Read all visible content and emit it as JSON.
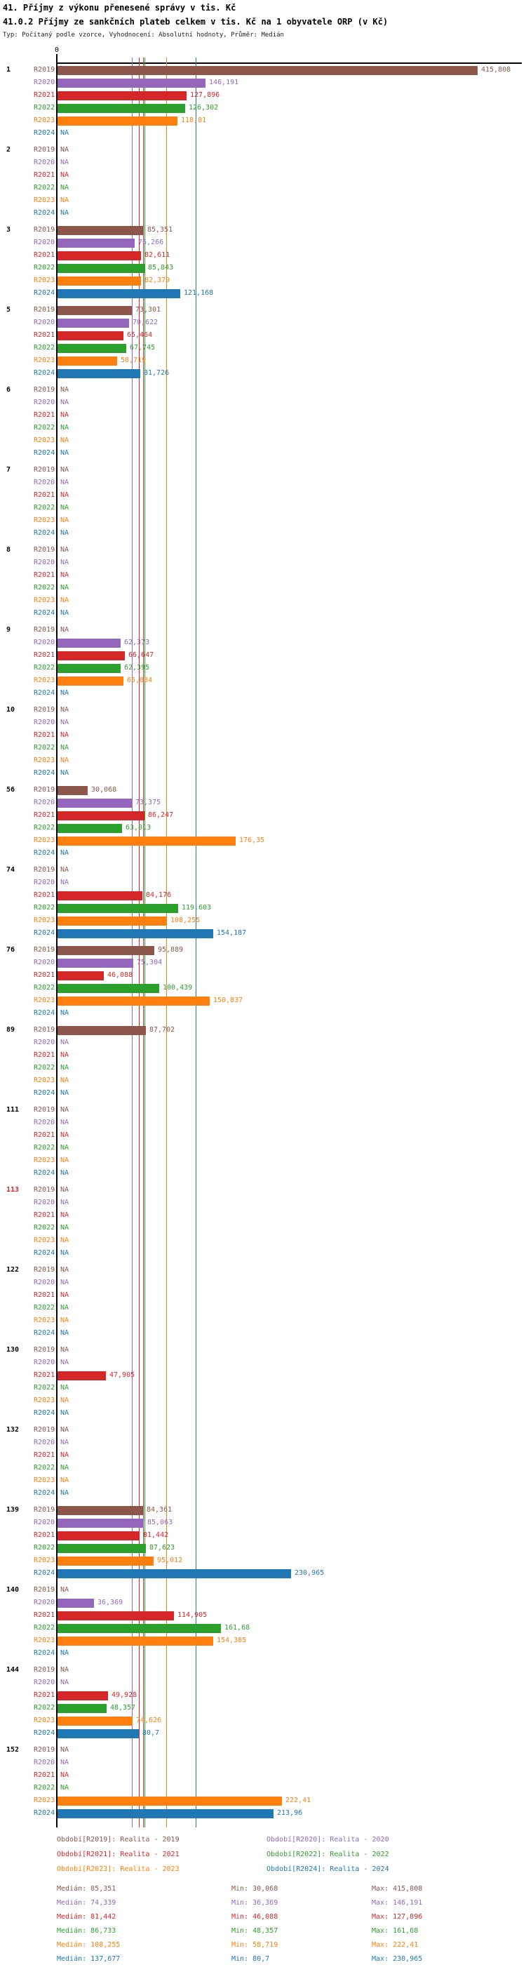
{
  "title": "41. Příjmy z výkonu přenesené správy v tis. Kč",
  "subtitle": "41.0.2 Příjmy ze sankčních plateb celkem v tis. Kč na 1 obyvatele ORP (v Kč)",
  "meta": "Typ: Počítaný podle vzorce, Vyhodnocení: Absolutní hodnoty, Průměr: Medián",
  "chart_data": {
    "type": "bar",
    "orientation": "horizontal",
    "zero_label": "0",
    "na_label": "NA",
    "xlim": [
      0,
      465
    ],
    "grid": false,
    "years": [
      {
        "key": "R2019",
        "color": "#8C564B"
      },
      {
        "key": "R2020",
        "color": "#9467BD"
      },
      {
        "key": "R2021",
        "color": "#D62728"
      },
      {
        "key": "R2022",
        "color": "#2CA02C"
      },
      {
        "key": "R2023",
        "color": "#FF7F0E"
      },
      {
        "key": "R2024",
        "color": "#1F77B4"
      }
    ],
    "groups": [
      {
        "id": "1",
        "values": [
          "415,808",
          "146,191",
          "127,896",
          "126,302",
          "118,81",
          "NA"
        ]
      },
      {
        "id": "2",
        "values": [
          "NA",
          "NA",
          "NA",
          "NA",
          "NA",
          "NA"
        ]
      },
      {
        "id": "3",
        "values": [
          "85,351",
          "76,266",
          "82,611",
          "85,843",
          "82,379",
          "121,168"
        ]
      },
      {
        "id": "5",
        "values": [
          "73,301",
          "70,622",
          "65,464",
          "67,745",
          "58,719",
          "81,726"
        ]
      },
      {
        "id": "6",
        "values": [
          "NA",
          "NA",
          "NA",
          "NA",
          "NA",
          "NA"
        ]
      },
      {
        "id": "7",
        "values": [
          "NA",
          "NA",
          "NA",
          "NA",
          "NA",
          "NA"
        ]
      },
      {
        "id": "8",
        "values": [
          "NA",
          "NA",
          "NA",
          "NA",
          "NA",
          "NA"
        ]
      },
      {
        "id": "9",
        "values": [
          "NA",
          "62,373",
          "66,647",
          "62,395",
          "65,084",
          "NA"
        ]
      },
      {
        "id": "10",
        "values": [
          "NA",
          "NA",
          "NA",
          "NA",
          "NA",
          "NA"
        ]
      },
      {
        "id": "56",
        "values": [
          "30,068",
          "73,375",
          "86,247",
          "63,813",
          "176,35",
          "NA"
        ]
      },
      {
        "id": "74",
        "values": [
          "NA",
          "NA",
          "84,176",
          "119,603",
          "108,255",
          "154,187"
        ]
      },
      {
        "id": "76",
        "values": [
          "95,889",
          "75,304",
          "46,088",
          "100,439",
          "150,837",
          "NA"
        ]
      },
      {
        "id": "89",
        "values": [
          "87,702",
          "NA",
          "NA",
          "NA",
          "NA",
          "NA"
        ]
      },
      {
        "id": "111",
        "values": [
          "NA",
          "NA",
          "NA",
          "NA",
          "NA",
          "NA"
        ]
      },
      {
        "id": "113",
        "id_color": "#D62728",
        "values": [
          "NA",
          "NA",
          "NA",
          "NA",
          "NA",
          "NA"
        ]
      },
      {
        "id": "122",
        "values": [
          "NA",
          "NA",
          "NA",
          "NA",
          "NA",
          "NA"
        ]
      },
      {
        "id": "130",
        "values": [
          "NA",
          "NA",
          "47,905",
          "NA",
          "NA",
          "NA"
        ]
      },
      {
        "id": "132",
        "values": [
          "NA",
          "NA",
          "NA",
          "NA",
          "NA",
          "NA"
        ]
      },
      {
        "id": "139",
        "values": [
          "84,361",
          "85,063",
          "81,442",
          "87,623",
          "95,012",
          "230,965"
        ]
      },
      {
        "id": "140",
        "values": [
          "NA",
          "36,369",
          "114,905",
          "161,68",
          "154,385",
          "NA"
        ]
      },
      {
        "id": "144",
        "values": [
          "NA",
          "NA",
          "49,928",
          "48,357",
          "74,626",
          "80,7"
        ]
      },
      {
        "id": "152",
        "values": [
          "NA",
          "NA",
          "NA",
          "NA",
          "222,41",
          "213,96"
        ]
      }
    ],
    "legend": {
      "position": "bottom",
      "items": [
        {
          "label": "Období[R2019]: Realita - 2019",
          "color": "#8C564B"
        },
        {
          "label": "Období[R2020]: Realita - 2020",
          "color": "#9467BD"
        },
        {
          "label": "Období[R2021]: Realita - 2021",
          "color": "#D62728"
        },
        {
          "label": "Období[R2022]: Realita - 2022",
          "color": "#2CA02C"
        },
        {
          "label": "Období[R2023]: Realita - 2023",
          "color": "#FF7F0E"
        },
        {
          "label": "Období[R2024]: Realita - 2024",
          "color": "#1F77B4"
        }
      ]
    },
    "stats": {
      "labels": {
        "median": "Medián",
        "min": "Min",
        "max": "Max"
      },
      "rows": [
        {
          "color": "#8C564B",
          "median": "85,351",
          "min": "30,068",
          "max": "415,808"
        },
        {
          "color": "#9467BD",
          "median": "74,339",
          "min": "36,369",
          "max": "146,191"
        },
        {
          "color": "#D62728",
          "median": "81,442",
          "min": "46,088",
          "max": "127,896"
        },
        {
          "color": "#2CA02C",
          "median": "86,733",
          "min": "48,357",
          "max": "161,68"
        },
        {
          "color": "#FF7F0E",
          "median": "108,255",
          "min": "58,719",
          "max": "222,41"
        },
        {
          "color": "#1F77B4",
          "median": "137,677",
          "min": "80,7",
          "max": "230,965"
        }
      ]
    }
  }
}
